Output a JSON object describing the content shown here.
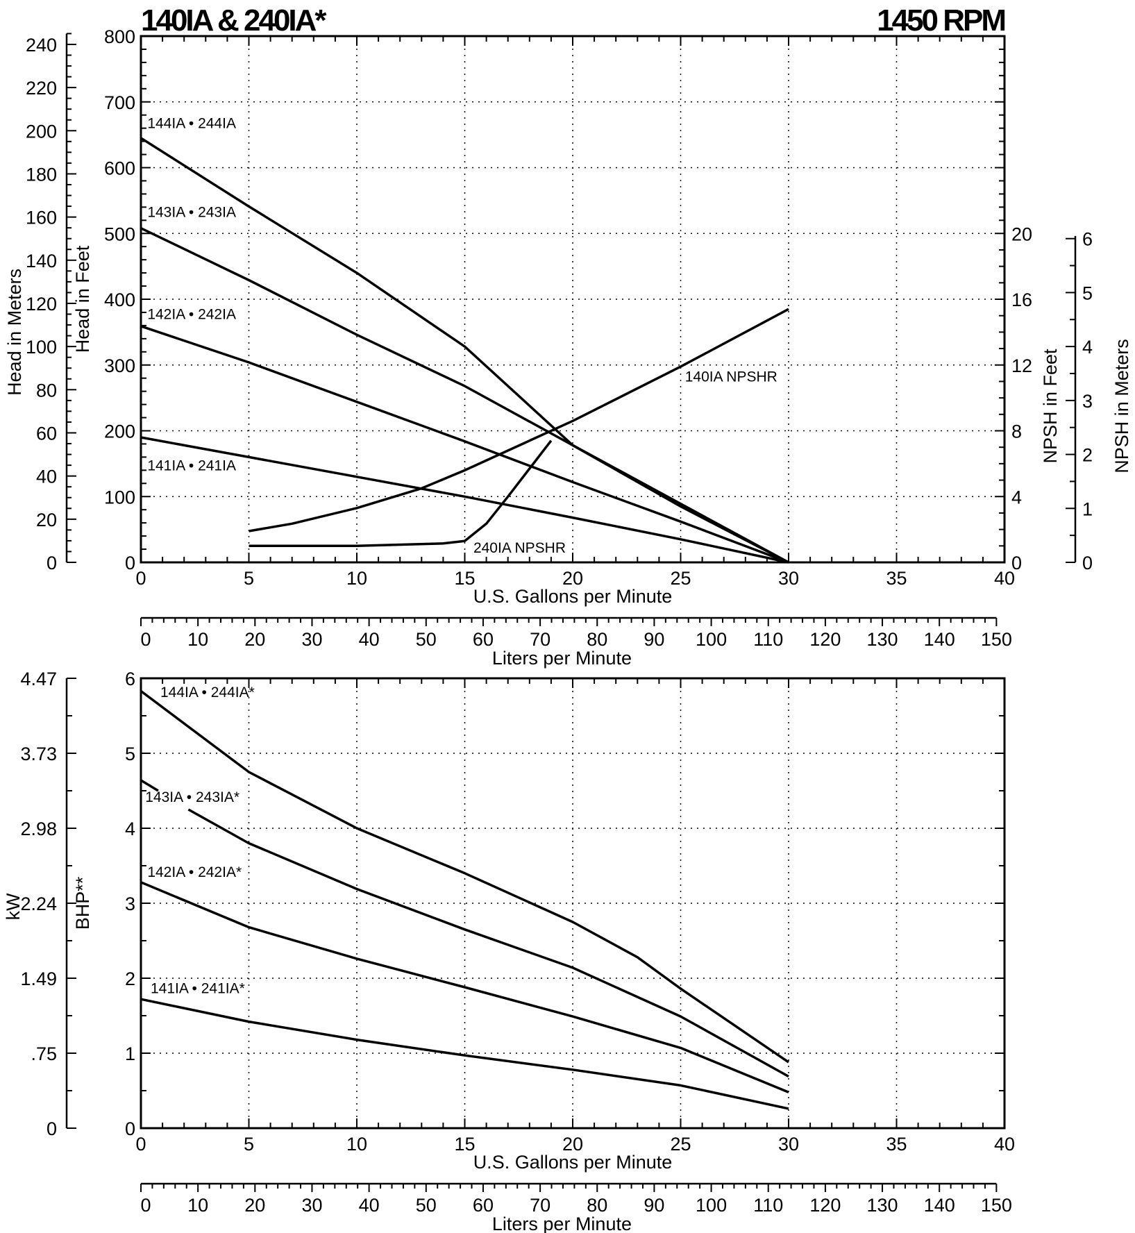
{
  "header": {
    "title_left": "140IA & 240IA*",
    "title_right": "1450 RPM"
  },
  "chart_data": [
    {
      "type": "line",
      "title": "140IA & 240IA*",
      "subtitle": "1450 RPM",
      "xlabel": "U.S. Gallons per Minute",
      "xlabel_secondary": "Liters per Minute",
      "ylabel": "Head in Feet",
      "ylabel_secondary": "Head in Meters",
      "y2label": "NPSH in Feet",
      "y2label_secondary": "NPSH in Meters",
      "xlim": [
        0,
        40
      ],
      "ylim": [
        0,
        800
      ],
      "y2lim": [
        0,
        20
      ],
      "x_ticks": [
        0,
        5,
        10,
        15,
        20,
        25,
        30,
        35,
        40
      ],
      "y_ticks": [
        0,
        100,
        200,
        300,
        400,
        500,
        600,
        700,
        800
      ],
      "y_meters_ticks": [
        0,
        20,
        40,
        60,
        80,
        100,
        120,
        140,
        160,
        180,
        200,
        220,
        240
      ],
      "y2_ticks": [
        0,
        4,
        8,
        12,
        16,
        20
      ],
      "y2_meters_ticks": [
        0,
        1,
        2,
        3,
        4,
        5,
        6
      ],
      "x_liters_ticks": [
        0,
        10,
        20,
        30,
        40,
        50,
        60,
        70,
        80,
        90,
        100,
        110,
        120,
        130,
        140,
        150
      ],
      "grid": true,
      "series": [
        {
          "name": "144IA • 244IA",
          "axis": "head",
          "x": [
            0,
            5,
            10,
            15,
            20,
            25,
            30
          ],
          "y": [
            645,
            541,
            440,
            328,
            178,
            85,
            0
          ]
        },
        {
          "name": "143IA • 243IA",
          "axis": "head",
          "x": [
            0,
            5,
            10,
            15,
            20,
            25,
            30
          ],
          "y": [
            508,
            429,
            346,
            268,
            178,
            89,
            0
          ]
        },
        {
          "name": "142IA • 242IA",
          "axis": "head",
          "x": [
            0,
            5,
            10,
            15,
            20,
            25,
            30
          ],
          "y": [
            359,
            304,
            244,
            184,
            122,
            62,
            0
          ]
        },
        {
          "name": "141IA • 241IA",
          "axis": "head",
          "x": [
            0,
            5,
            10,
            15,
            20,
            25,
            30
          ],
          "y": [
            190,
            160,
            130,
            100,
            68,
            35,
            0
          ]
        },
        {
          "name": "140IA NPSHR",
          "axis": "npsh",
          "x": [
            5,
            7,
            10,
            13,
            15,
            20,
            25,
            30
          ],
          "y": [
            1.9,
            2.35,
            3.3,
            4.5,
            5.6,
            8.6,
            11.9,
            15.4
          ]
        },
        {
          "name": "240IA NPSHR",
          "axis": "npsh",
          "x": [
            5,
            10,
            14,
            15,
            16,
            17,
            18,
            19
          ],
          "y": [
            1.0,
            1.0,
            1.15,
            1.3,
            2.35,
            4.0,
            5.7,
            7.4
          ]
        }
      ]
    },
    {
      "type": "line",
      "xlabel": "U.S. Gallons per Minute",
      "xlabel_secondary": "Liters per Minute",
      "ylabel": "BHP**",
      "ylabel_secondary": "kW",
      "xlim": [
        0,
        40
      ],
      "ylim": [
        0,
        6
      ],
      "x_ticks": [
        0,
        5,
        10,
        15,
        20,
        25,
        30,
        35,
        40
      ],
      "y_ticks": [
        0,
        1,
        2,
        3,
        4,
        5,
        6
      ],
      "y_kw_ticks": [
        "0",
        ".75",
        "1.49",
        "2.24",
        "2.98",
        "3.73",
        "4.47"
      ],
      "x_liters_ticks": [
        0,
        10,
        20,
        30,
        40,
        50,
        60,
        70,
        80,
        90,
        100,
        110,
        120,
        130,
        140,
        150
      ],
      "grid": true,
      "series": [
        {
          "name": "144IA • 244IA*",
          "x": [
            0,
            5,
            10,
            15,
            20,
            23,
            25,
            30
          ],
          "y": [
            5.83,
            4.75,
            4.0,
            3.4,
            2.75,
            2.28,
            1.86,
            0.88
          ]
        },
        {
          "name": "143IA • 243IA*",
          "x": [
            0,
            0.8,
            null,
            2.2,
            5,
            10,
            15,
            20,
            25,
            30
          ],
          "y": [
            4.64,
            4.5,
            null,
            4.25,
            3.8,
            3.19,
            2.65,
            2.14,
            1.49,
            0.69
          ]
        },
        {
          "name": "142IA • 242IA*",
          "x": [
            0,
            5,
            10,
            15,
            20,
            25,
            30
          ],
          "y": [
            3.28,
            2.68,
            2.26,
            1.88,
            1.49,
            1.07,
            0.48
          ]
        },
        {
          "name": "141IA • 241IA*",
          "x": [
            0,
            5,
            10,
            15,
            20,
            25,
            30
          ],
          "y": [
            1.72,
            1.42,
            1.18,
            0.97,
            0.78,
            0.57,
            0.26
          ]
        }
      ]
    }
  ]
}
